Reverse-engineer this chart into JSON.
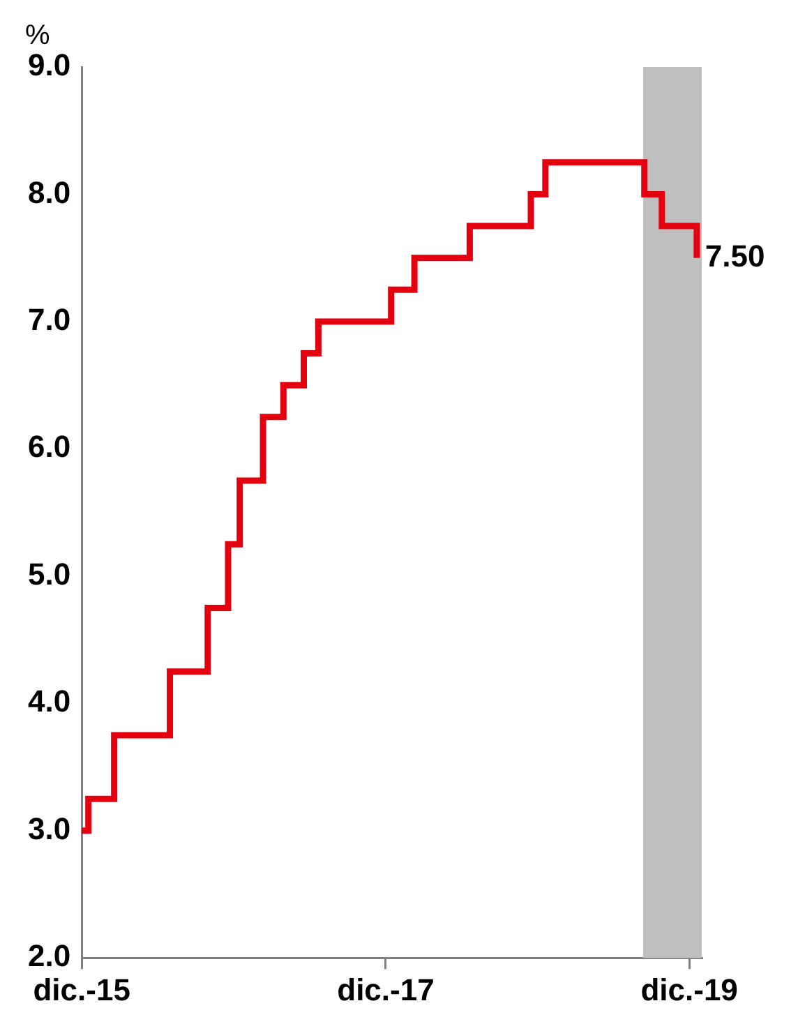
{
  "chart_data": {
    "type": "step",
    "ylabel": "%",
    "x": [
      "2015-12-01",
      "2015-12-17",
      "2016-02-17",
      "2016-06-30",
      "2016-09-29",
      "2016-11-17",
      "2016-12-15",
      "2017-02-09",
      "2017-03-30",
      "2017-05-18",
      "2017-06-22",
      "2017-12-14",
      "2018-02-08",
      "2018-06-21",
      "2018-11-15",
      "2018-12-20",
      "2019-08-15",
      "2019-09-26",
      "2019-12-19"
    ],
    "series": [
      {
        "color": "#e3000f",
        "values": [
          3.0,
          3.25,
          3.75,
          4.25,
          4.75,
          5.25,
          5.75,
          6.25,
          6.5,
          6.75,
          7.0,
          7.25,
          7.5,
          7.75,
          8.0,
          8.25,
          8.0,
          7.75,
          7.5
        ]
      }
    ],
    "xlim": [
      "2015-12-01",
      "2019-12-31"
    ],
    "xticks": [
      {
        "value": "2015-12-01",
        "label": "dic.-15"
      },
      {
        "value": "2017-12-01",
        "label": "dic.-17"
      },
      {
        "value": "2019-12-01",
        "label": "dic.-19"
      }
    ],
    "ylim": [
      2,
      9
    ],
    "yticks": [
      {
        "value": 2,
        "label": "2.0"
      },
      {
        "value": 3,
        "label": "3.0"
      },
      {
        "value": 4,
        "label": "4.0"
      },
      {
        "value": 5,
        "label": "5.0"
      },
      {
        "value": 6,
        "label": "6.0"
      },
      {
        "value": 7,
        "label": "7.0"
      },
      {
        "value": 8,
        "label": "8.0"
      },
      {
        "value": 9,
        "label": "9.0"
      }
    ],
    "bands": [
      {
        "axis": "x",
        "from": "2019-08-12",
        "to": "2019-12-31",
        "color": "#bfbfbf"
      }
    ],
    "annotations": [
      {
        "text": "7.50",
        "x": "2019-12-19",
        "y": 7.5
      }
    ],
    "grid": false,
    "legend": false
  }
}
